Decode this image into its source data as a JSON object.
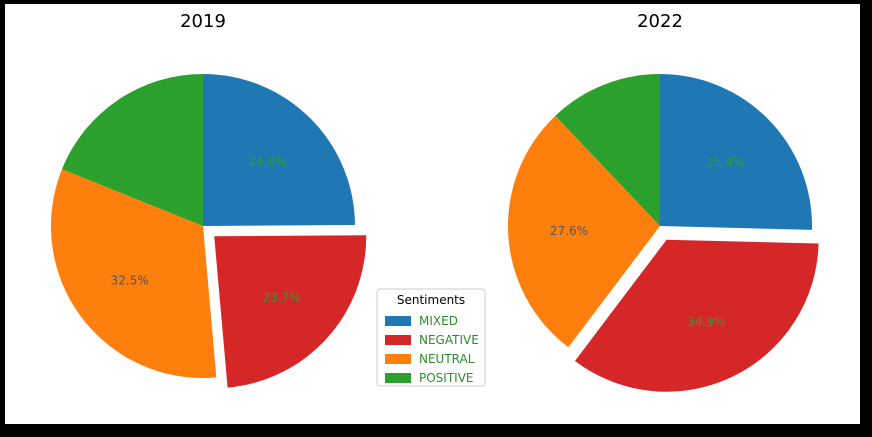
{
  "chart_data": [
    {
      "type": "pie",
      "title": "2019",
      "start_angle_deg": 90,
      "direction": "clockwise",
      "slices": [
        {
          "label": "MIXED",
          "value": 24.9,
          "display": "24.9%",
          "explode": 0
        },
        {
          "label": "NEGATIVE",
          "value": 23.7,
          "display": "23.7%",
          "explode": 0.1
        },
        {
          "label": "NEUTRAL",
          "value": 32.5,
          "display": "32.5%",
          "explode": 0
        },
        {
          "label": "POSITIVE",
          "value": 18.9,
          "display": "",
          "explode": 0
        }
      ]
    },
    {
      "type": "pie",
      "title": "2022",
      "start_angle_deg": 90,
      "direction": "clockwise",
      "slices": [
        {
          "label": "MIXED",
          "value": 25.4,
          "display": "25.4%",
          "explode": 0
        },
        {
          "label": "NEGATIVE",
          "value": 34.9,
          "display": "34.9%",
          "explode": 0.1
        },
        {
          "label": "NEUTRAL",
          "value": 27.6,
          "display": "27.6%",
          "explode": 0
        },
        {
          "label": "POSITIVE",
          "value": 12.1,
          "display": "",
          "explode": 0
        }
      ]
    }
  ],
  "legend": {
    "title": "Sentiments",
    "placement": "bottom-center",
    "entries": [
      "MIXED",
      "NEGATIVE",
      "NEUTRAL",
      "POSITIVE"
    ]
  },
  "colors": {
    "MIXED": "#1f77b4",
    "NEGATIVE": "#d62728",
    "NEUTRAL": "#ff7f0e",
    "POSITIVE": "#2ca02c",
    "title": "#2e8b2e",
    "label": "#2ca02c",
    "label_dark": "#555555",
    "legend_text": "#2e8b2e"
  }
}
